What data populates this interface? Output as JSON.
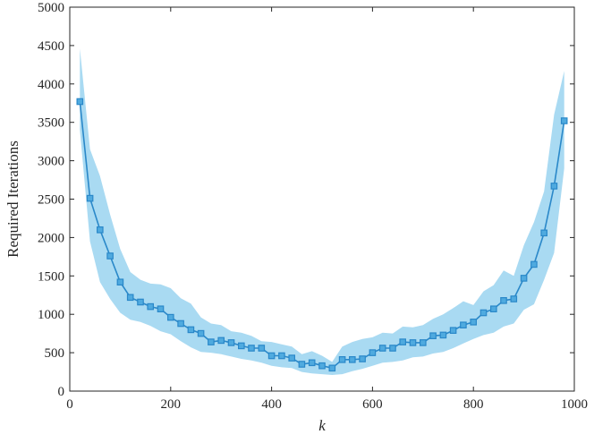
{
  "chart_data": {
    "type": "line",
    "title": "",
    "xlabel": "k",
    "ylabel": "Required Iterations",
    "xlim": [
      0,
      1000
    ],
    "ylim": [
      0,
      5000
    ],
    "xticks": [
      0,
      200,
      400,
      600,
      800,
      1000
    ],
    "yticks": [
      0,
      500,
      1000,
      1500,
      2000,
      2500,
      3000,
      3500,
      4000,
      4500,
      5000
    ],
    "grid": false,
    "legend": "none",
    "colors": {
      "line": "#2A88C9",
      "band": "#A9DAF2",
      "marker_fill": "#4FAADF",
      "axis": "#262626"
    },
    "series": [
      {
        "marker": "square",
        "x": [
          20,
          40,
          60,
          80,
          100,
          120,
          140,
          160,
          180,
          200,
          220,
          240,
          260,
          280,
          300,
          320,
          340,
          360,
          380,
          400,
          420,
          440,
          460,
          480,
          500,
          520,
          540,
          560,
          580,
          600,
          620,
          640,
          660,
          680,
          700,
          720,
          740,
          760,
          780,
          800,
          820,
          840,
          860,
          880,
          900,
          920,
          940,
          960,
          980
        ],
        "y": [
          3770,
          2510,
          2100,
          1760,
          1420,
          1220,
          1160,
          1100,
          1070,
          960,
          880,
          800,
          750,
          640,
          660,
          630,
          590,
          560,
          560,
          460,
          460,
          430,
          350,
          370,
          330,
          300,
          410,
          410,
          420,
          500,
          560,
          560,
          640,
          630,
          630,
          720,
          730,
          790,
          860,
          900,
          1020,
          1070,
          1180,
          1200,
          1470,
          1650,
          2060,
          2670,
          3520
        ],
        "lower": [
          3400,
          1950,
          1420,
          1200,
          1020,
          930,
          900,
          850,
          780,
          740,
          650,
          570,
          510,
          500,
          480,
          450,
          420,
          400,
          370,
          330,
          310,
          300,
          250,
          230,
          220,
          210,
          220,
          260,
          290,
          330,
          370,
          380,
          400,
          440,
          450,
          490,
          510,
          560,
          620,
          680,
          730,
          760,
          840,
          880,
          1060,
          1130,
          1450,
          1800,
          2900
        ],
        "upper": [
          4460,
          3150,
          2800,
          2300,
          1850,
          1550,
          1450,
          1400,
          1390,
          1340,
          1210,
          1140,
          960,
          880,
          860,
          780,
          760,
          720,
          650,
          640,
          610,
          580,
          480,
          520,
          460,
          380,
          580,
          640,
          680,
          700,
          760,
          750,
          840,
          830,
          860,
          940,
          1000,
          1080,
          1170,
          1120,
          1300,
          1380,
          1570,
          1500,
          1900,
          2200,
          2600,
          3600,
          4170
        ]
      }
    ]
  }
}
